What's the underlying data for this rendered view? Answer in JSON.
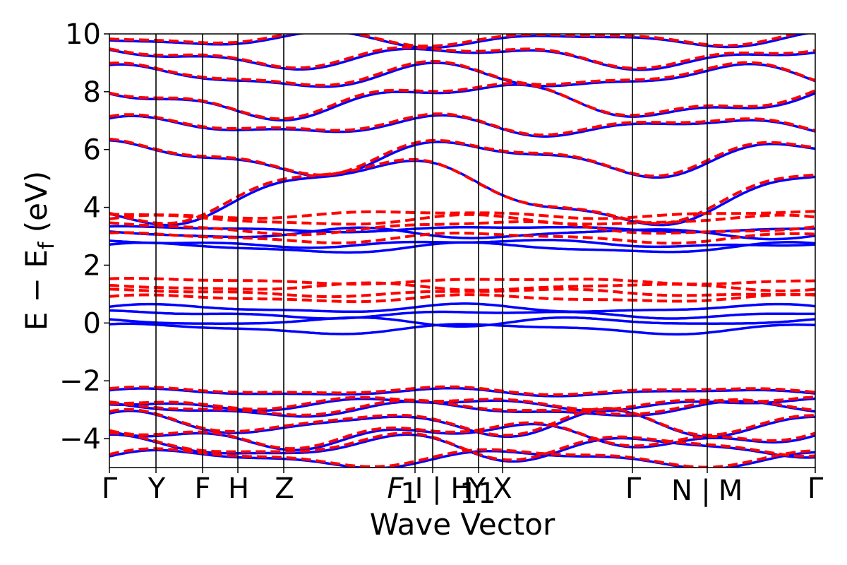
{
  "chart_data": {
    "type": "line",
    "title": "",
    "xlabel": "Wave Vector",
    "ylabel": "E − Ef (eV)",
    "ylabel_main": "E − E",
    "ylabel_sub": "f",
    "ylabel_unit": " (eV)",
    "ylim": [
      -5,
      10
    ],
    "yticks": [
      -4,
      -2,
      0,
      2,
      4,
      6,
      8,
      10
    ],
    "ytick_labels": [
      "−4",
      "−2",
      "0",
      "2",
      "4",
      "6",
      "8",
      "10"
    ],
    "xlim": [
      0,
      10
    ],
    "high_symmetry_points": [
      {
        "label": "Γ",
        "x": 0.0
      },
      {
        "label": "Y",
        "x": 0.66
      },
      {
        "label": "F",
        "x": 1.32
      },
      {
        "label": "H",
        "x": 1.82
      },
      {
        "label": "Z",
        "x": 2.47
      },
      {
        "label": "F₁",
        "x": 4.33
      },
      {
        "label": "|",
        "x": 4.58
      },
      {
        "label": "H₁",
        "x": 4.58
      },
      {
        "label": "Y₁",
        "x": 5.23
      },
      {
        "label": "X",
        "x": 5.57
      },
      {
        "label": "Γ",
        "x": 7.41
      },
      {
        "label": "N",
        "x": 8.47
      },
      {
        "label": "|",
        "x": 8.47
      },
      {
        "label": "M",
        "x": 8.47
      },
      {
        "label": "Γ",
        "x": 10.0
      }
    ],
    "tick_label_text": {
      "g1": "Γ",
      "y": "Y",
      "f": "F",
      "h": "H",
      "z": "Z",
      "f1": "F",
      "f1sub": "1",
      "bar1": "I | H",
      "h1sub": "1",
      "y1": "Y",
      "y1sub": "1",
      "x": "X",
      "g2": "Γ",
      "n": "N",
      "bar2": "|",
      "m": "M",
      "g3": "Γ"
    },
    "series": [
      {
        "name": "",
        "color": "#0000ff",
        "style": "solid"
      },
      {
        "name": "",
        "color": "#ff0000",
        "style": "dashed"
      }
    ],
    "grid": false,
    "legend": "none"
  }
}
